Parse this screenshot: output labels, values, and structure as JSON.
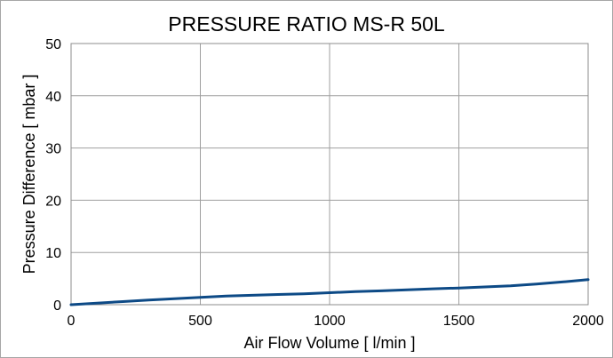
{
  "chart_data": {
    "type": "line",
    "title": "PRESSURE RATIO MS-R 50L",
    "xlabel": "Air Flow Volume [ l/min ]",
    "ylabel": "Pressure Difference [ mbar ]",
    "xlim": [
      0,
      2000
    ],
    "ylim": [
      0,
      50
    ],
    "x_ticks": [
      "0",
      "500",
      "1000",
      "1500",
      "2000"
    ],
    "y_ticks": [
      "0",
      "10",
      "20",
      "30",
      "40",
      "50"
    ],
    "grid": "on",
    "legend": "none",
    "series": [
      {
        "color": "#0d4a86",
        "x": [
          0,
          100,
          200,
          300,
          400,
          500,
          600,
          700,
          800,
          900,
          1000,
          1100,
          1200,
          1300,
          1400,
          1500,
          1600,
          1700,
          1800,
          1900,
          2000
        ],
        "y": [
          0,
          0.3,
          0.6,
          0.9,
          1.15,
          1.4,
          1.65,
          1.8,
          1.95,
          2.1,
          2.3,
          2.5,
          2.65,
          2.85,
          3.05,
          3.2,
          3.4,
          3.6,
          3.95,
          4.35,
          4.8
        ]
      }
    ]
  }
}
